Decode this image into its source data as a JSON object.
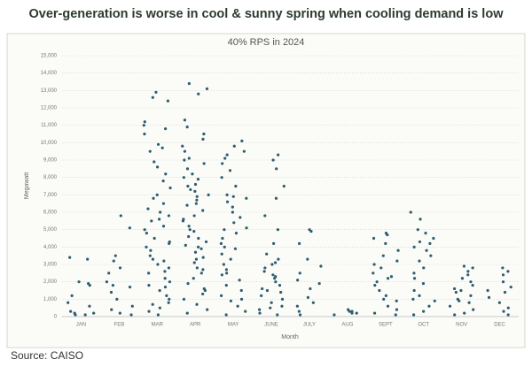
{
  "chart_data": {
    "type": "strip",
    "title": "Over-generation is worse in cool & sunny spring when cooling demand is low",
    "subtitle": "40% RPS in 2024",
    "y_label": "Megawatt",
    "x_label": "Month",
    "source": "Source: CAISO",
    "color": "#2e5d70",
    "grid": true,
    "categories": [
      "JAN",
      "FEB",
      "MAR",
      "APR",
      "MAY",
      "JUNE",
      "JULY",
      "AUG",
      "SEPT",
      "OCT",
      "NOV",
      "DEC"
    ],
    "values": [
      [
        3300,
        3400,
        2000,
        1800,
        1200,
        600,
        300,
        200,
        100,
        1900,
        800,
        200,
        100
      ],
      [
        5800,
        3500,
        3200,
        2800,
        2500,
        2000,
        1700,
        1400,
        1000,
        600,
        400,
        200,
        100,
        5100,
        1800
      ],
      [
        12900,
        12600,
        12400,
        11200,
        10800,
        10500,
        9900,
        9500,
        8600,
        8200,
        7800,
        7400,
        7000,
        6500,
        6200,
        6000,
        5800,
        5500,
        5200,
        5000,
        4800,
        4500,
        4300,
        4000,
        3800,
        3500,
        3200,
        3000,
        2800,
        2500,
        2200,
        2000,
        1800,
        1500,
        1200,
        1000,
        800,
        500,
        300,
        100,
        9700,
        6800,
        4200,
        3300,
        2600,
        1700,
        700,
        11000,
        8900,
        5600
      ],
      [
        13400,
        13100,
        12800,
        11300,
        10900,
        10500,
        10200,
        9800,
        9500,
        9100,
        8800,
        8500,
        8200,
        7900,
        7600,
        7300,
        7000,
        6700,
        6400,
        6100,
        5800,
        5500,
        5200,
        4900,
        4600,
        4300,
        4000,
        3700,
        3400,
        3100,
        2800,
        2500,
        2200,
        1900,
        1600,
        1300,
        1000,
        700,
        400,
        200,
        8000,
        7500,
        7200,
        6900,
        6500,
        5000,
        4500,
        3900,
        3300,
        2700,
        1500,
        9000,
        5600,
        4100
      ],
      [
        10100,
        9800,
        9500,
        9300,
        9100,
        8800,
        8400,
        8000,
        7500,
        7000,
        6800,
        6600,
        6300,
        6000,
        5700,
        5400,
        5100,
        4800,
        4500,
        4200,
        3900,
        3600,
        3300,
        3000,
        2700,
        2400,
        2100,
        1800,
        1500,
        1200,
        900,
        600,
        300,
        100,
        6900,
        5000,
        4000,
        2500,
        1000
      ],
      [
        9300,
        9000,
        8500,
        7500,
        6800,
        5800,
        5000,
        4200,
        3600,
        3300,
        3000,
        2800,
        2600,
        2400,
        2200,
        2000,
        1800,
        1600,
        1400,
        1200,
        1000,
        800,
        600,
        400,
        200,
        100,
        3100,
        2300,
        1500,
        500
      ],
      [
        5000,
        4900,
        4200,
        3300,
        2900,
        2500,
        2100,
        1900,
        1600,
        1100,
        800,
        600,
        300,
        100
      ],
      [
        400,
        300,
        200,
        100,
        300,
        200
      ],
      [
        4800,
        4700,
        4500,
        4200,
        3800,
        3500,
        3200,
        3000,
        2800,
        2500,
        2200,
        2000,
        1800,
        1500,
        1200,
        900,
        600,
        400,
        200,
        100,
        2300,
        1000
      ],
      [
        6000,
        5600,
        5000,
        4800,
        4500,
        4200,
        4000,
        3800,
        3500,
        3200,
        2800,
        2500,
        2200,
        1900,
        1500,
        1200,
        900,
        600,
        300,
        100,
        4300,
        1000
      ],
      [
        2900,
        2800,
        2600,
        2400,
        2200,
        2000,
        1800,
        1600,
        1400,
        1200,
        1000,
        800,
        600,
        400,
        200,
        100,
        1500,
        900
      ],
      [
        2800,
        2600,
        2400,
        2000,
        1700,
        1400,
        1100,
        800,
        500,
        300,
        100,
        1500
      ]
    ],
    "ylim": [
      0,
      15000
    ],
    "yticks": [
      0,
      {
        "value": 1000,
        "label": "1,000"
      },
      {
        "value": 2000,
        "label": "2,000"
      },
      {
        "value": 3000,
        "label": "3,000"
      },
      {
        "value": 4000,
        "label": "4,000"
      },
      {
        "value": 5000,
        "label": "5,000"
      },
      {
        "value": 6000,
        "label": "6,000"
      },
      {
        "value": 7000,
        "label": "7,000"
      },
      {
        "value": 8000,
        "label": "8,000"
      },
      {
        "value": 9000,
        "label": "9,000"
      },
      {
        "value": 10000,
        "label": "10,000"
      },
      {
        "value": 11000,
        "label": "11,000"
      },
      {
        "value": 12000,
        "label": "12,000"
      },
      {
        "value": 13000,
        "label": "13,000"
      },
      {
        "value": 14000,
        "label": "14,000"
      },
      {
        "value": 15000,
        "label": "15,000"
      }
    ]
  }
}
